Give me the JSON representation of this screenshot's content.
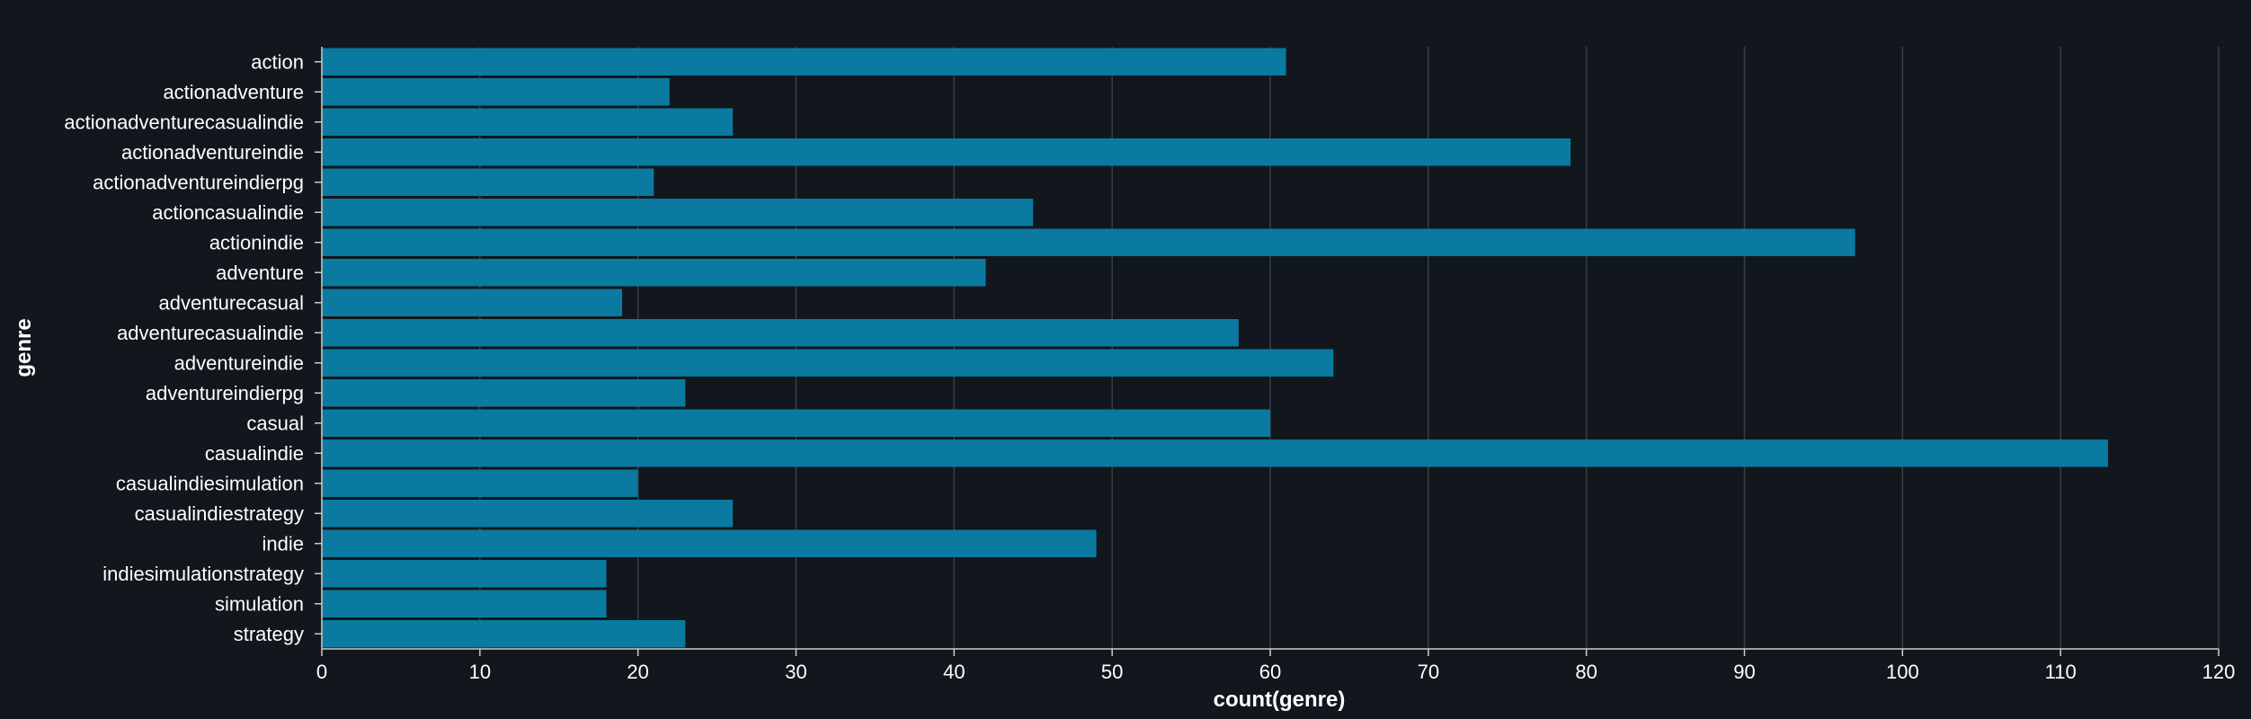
{
  "chart_data": {
    "type": "bar",
    "orientation": "horizontal",
    "categories": [
      "action",
      "actionadventure",
      "actionadventurecasualindie",
      "actionadventureindie",
      "actionadventureindierpg",
      "actioncasualindie",
      "actionindie",
      "adventure",
      "adventurecasual",
      "adventurecasualindie",
      "adventureindie",
      "adventureindierpg",
      "casual",
      "casualindie",
      "casualindiesimulation",
      "casualindiestrategy",
      "indie",
      "indiesimulationstrategy",
      "simulation",
      "strategy"
    ],
    "values": [
      61,
      22,
      26,
      79,
      21,
      45,
      97,
      42,
      19,
      58,
      64,
      23,
      60,
      113,
      20,
      26,
      49,
      18,
      18,
      23
    ],
    "xlabel": "count(genre)",
    "ylabel": "genre",
    "xlim": [
      0,
      120
    ],
    "xticks": [
      0,
      10,
      20,
      30,
      40,
      50,
      60,
      70,
      80,
      90,
      100,
      110,
      120
    ],
    "grid": "vertical",
    "colors": {
      "bar": "#0a7aa0",
      "background": "#12171d",
      "grid": "#3a3f44",
      "axis": "#cccccc",
      "text": "#ffffff"
    }
  }
}
